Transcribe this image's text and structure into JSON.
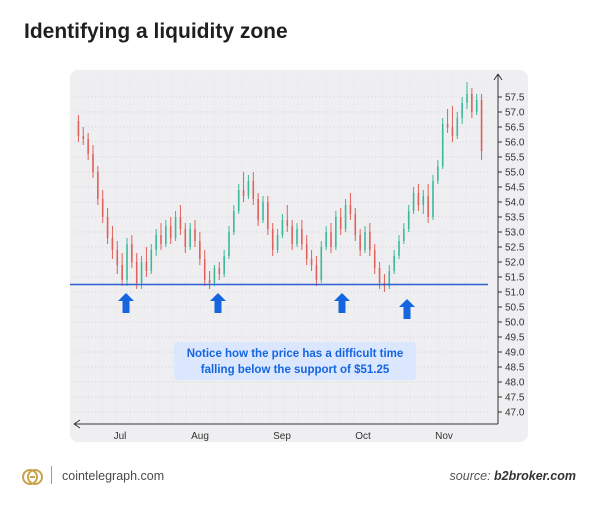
{
  "title": "Identifying a liquidity zone",
  "footer": {
    "site": "cointelegraph.com",
    "source_prefix": "source: ",
    "source_name": "b2broker.com"
  },
  "colors": {
    "up": "#3bb89a",
    "down": "#e0605a",
    "support_line": "#2f5fd0",
    "arrow": "#1565e0",
    "annotation_bg": "#dbe7ff",
    "annotation_text": "#1565e0"
  },
  "chart_data": {
    "type": "candlestick",
    "x_ticks": [
      "Jul",
      "Aug",
      "Sep",
      "Oct",
      "Nov"
    ],
    "y_ticks": [
      "47.0",
      "47.5",
      "48.0",
      "48.5",
      "49.0",
      "49.5",
      "50.0",
      "50.5",
      "51.0",
      "51.5",
      "52.0",
      "52.5",
      "53.0",
      "53.5",
      "54.0",
      "54.5",
      "55.0",
      "55.5",
      "56.0",
      "56.5",
      "57.0",
      "57.5"
    ],
    "ylim": [
      46.6,
      58.2
    ],
    "grid": true,
    "support_level": 51.25,
    "annotation": "Notice how the price has a difficult time falling below the support of $51.25",
    "touch_arrows": [
      {
        "at": "Jul 3"
      },
      {
        "at": "Aug 5"
      },
      {
        "at": "Sep 21"
      },
      {
        "at": "Oct 18"
      }
    ],
    "candles": [
      [
        56.7,
        56.9,
        56.0,
        56.2
      ],
      [
        56.2,
        56.5,
        55.9,
        56.1
      ],
      [
        56.1,
        56.3,
        55.4,
        55.6
      ],
      [
        55.6,
        55.9,
        54.8,
        55.0
      ],
      [
        55.0,
        55.2,
        53.9,
        54.1
      ],
      [
        54.1,
        54.4,
        53.3,
        53.5
      ],
      [
        53.5,
        53.8,
        52.6,
        52.8
      ],
      [
        52.8,
        53.2,
        52.1,
        52.4
      ],
      [
        52.4,
        52.7,
        51.6,
        51.9
      ],
      [
        51.9,
        52.3,
        51.2,
        51.4
      ],
      [
        51.4,
        52.8,
        51.2,
        52.6
      ],
      [
        52.6,
        52.9,
        51.8,
        52.0
      ],
      [
        52.0,
        52.3,
        51.1,
        51.3
      ],
      [
        51.3,
        52.2,
        51.1,
        52.0
      ],
      [
        52.0,
        52.5,
        51.5,
        51.7
      ],
      [
        51.7,
        52.6,
        51.6,
        52.4
      ],
      [
        52.4,
        53.1,
        52.2,
        52.9
      ],
      [
        52.9,
        53.3,
        52.4,
        52.6
      ],
      [
        52.6,
        53.4,
        52.5,
        53.2
      ],
      [
        53.2,
        53.5,
        52.6,
        52.8
      ],
      [
        52.8,
        53.7,
        52.7,
        53.5
      ],
      [
        53.5,
        53.9,
        52.9,
        53.1
      ],
      [
        53.1,
        53.3,
        52.3,
        52.5
      ],
      [
        52.5,
        53.3,
        52.4,
        53.1
      ],
      [
        53.1,
        53.4,
        52.5,
        52.7
      ],
      [
        52.7,
        53.0,
        51.9,
        52.1
      ],
      [
        52.1,
        52.4,
        51.2,
        51.4
      ],
      [
        51.4,
        51.7,
        51.1,
        51.3
      ],
      [
        51.3,
        51.9,
        51.2,
        51.8
      ],
      [
        51.8,
        52.0,
        51.4,
        51.6
      ],
      [
        51.6,
        52.4,
        51.5,
        52.2
      ],
      [
        52.2,
        53.2,
        52.1,
        53.0
      ],
      [
        53.0,
        53.9,
        52.9,
        53.7
      ],
      [
        53.7,
        54.6,
        53.6,
        54.4
      ],
      [
        54.4,
        55.0,
        54.0,
        54.2
      ],
      [
        54.2,
        54.9,
        54.1,
        54.7
      ],
      [
        54.7,
        55.0,
        53.9,
        54.1
      ],
      [
        54.1,
        54.3,
        53.2,
        53.4
      ],
      [
        53.4,
        54.2,
        53.3,
        54.0
      ],
      [
        54.0,
        54.2,
        52.9,
        53.1
      ],
      [
        53.1,
        53.3,
        52.2,
        52.4
      ],
      [
        52.4,
        53.1,
        52.3,
        52.9
      ],
      [
        52.9,
        53.6,
        52.8,
        53.4
      ],
      [
        53.4,
        53.9,
        53.0,
        53.2
      ],
      [
        53.2,
        53.4,
        52.4,
        52.6
      ],
      [
        52.6,
        53.3,
        52.5,
        53.1
      ],
      [
        53.1,
        53.4,
        52.4,
        52.6
      ],
      [
        52.6,
        52.9,
        51.9,
        52.1
      ],
      [
        52.1,
        52.4,
        51.7,
        51.9
      ],
      [
        51.9,
        52.2,
        51.2,
        51.4
      ],
      [
        51.4,
        52.7,
        51.3,
        52.5
      ],
      [
        52.5,
        53.2,
        52.4,
        53.0
      ],
      [
        53.0,
        53.3,
        52.3,
        52.5
      ],
      [
        52.5,
        53.7,
        52.4,
        53.5
      ],
      [
        53.5,
        53.8,
        52.9,
        53.1
      ],
      [
        53.1,
        54.1,
        53.0,
        53.9
      ],
      [
        53.9,
        54.3,
        53.4,
        53.6
      ],
      [
        53.6,
        53.8,
        52.7,
        52.9
      ],
      [
        52.9,
        53.1,
        52.2,
        52.4
      ],
      [
        52.4,
        53.2,
        52.3,
        53.0
      ],
      [
        53.0,
        53.3,
        52.2,
        52.4
      ],
      [
        52.4,
        52.6,
        51.6,
        51.8
      ],
      [
        51.8,
        52.0,
        51.1,
        51.3
      ],
      [
        51.3,
        51.6,
        51.0,
        51.2
      ],
      [
        51.2,
        51.9,
        51.1,
        51.7
      ],
      [
        51.7,
        52.4,
        51.6,
        52.2
      ],
      [
        52.2,
        52.9,
        52.1,
        52.7
      ],
      [
        52.7,
        53.3,
        52.6,
        53.1
      ],
      [
        53.1,
        53.9,
        53.0,
        53.7
      ],
      [
        53.7,
        54.5,
        53.6,
        54.3
      ],
      [
        54.3,
        54.6,
        53.7,
        53.9
      ],
      [
        53.9,
        54.4,
        53.6,
        54.2
      ],
      [
        54.2,
        54.6,
        53.3,
        53.5
      ],
      [
        53.5,
        54.9,
        53.4,
        54.7
      ],
      [
        54.7,
        55.4,
        54.6,
        55.2
      ],
      [
        55.2,
        56.8,
        55.1,
        56.6
      ],
      [
        56.6,
        57.1,
        56.3,
        56.5
      ],
      [
        56.5,
        57.2,
        56.0,
        56.2
      ],
      [
        56.2,
        57.0,
        56.1,
        56.8
      ],
      [
        56.8,
        57.5,
        56.6,
        57.3
      ],
      [
        57.3,
        58.0,
        57.1,
        57.6
      ],
      [
        57.6,
        57.8,
        56.8,
        57.0
      ],
      [
        57.0,
        57.6,
        56.9,
        57.4
      ],
      [
        57.4,
        57.6,
        55.4,
        55.7
      ]
    ]
  }
}
